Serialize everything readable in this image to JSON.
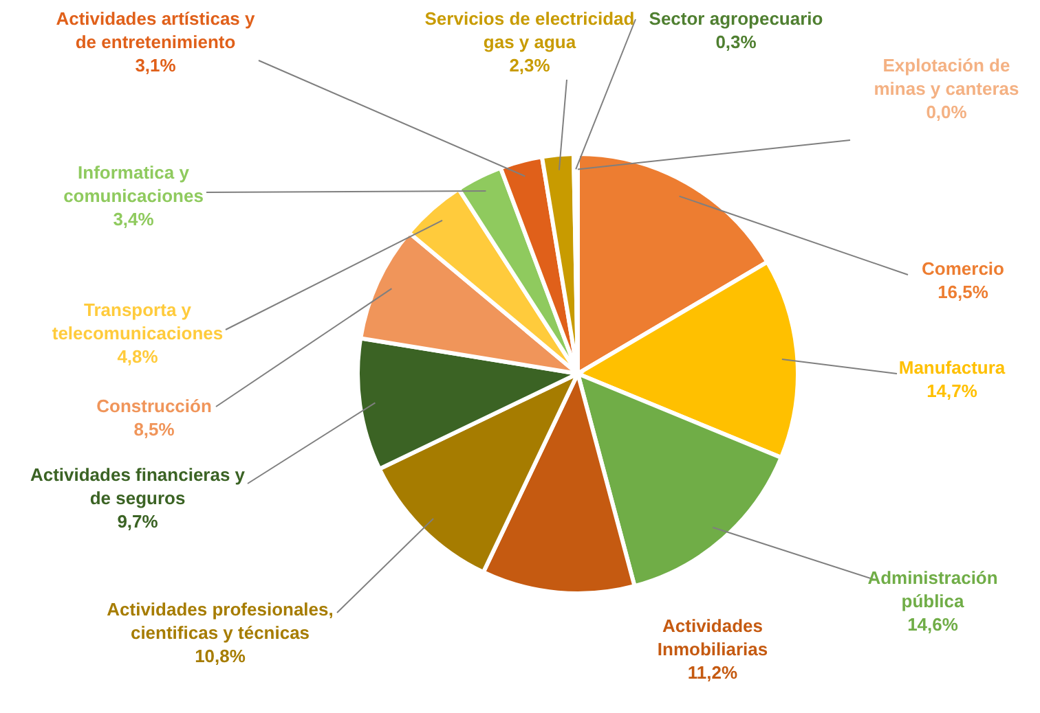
{
  "chart_data": {
    "type": "pie",
    "categories": [
      "Explotación de minas y canteras",
      "Comercio",
      "Manufactura",
      "Administración pública",
      "Actividades Inmobiliarias",
      "Actividades profesionales, cientificas y técnicas",
      "Actividades financieras y de seguros",
      "Construcción",
      "Transporta y telecomunicaciones",
      "Informatica y comunicaciones",
      "Actividades artísticas y de entretenimiento",
      "Servicios de electricidad gas y agua",
      "Sector agropecuario"
    ],
    "values": [
      0.0,
      16.5,
      14.7,
      14.6,
      11.2,
      10.8,
      9.7,
      8.5,
      4.8,
      3.4,
      3.1,
      2.3,
      0.3
    ],
    "value_labels": [
      "0,0%",
      "16,5%",
      "14,7%",
      "14,6%",
      "11,2%",
      "10,8%",
      "9,7%",
      "8,5%",
      "4,8%",
      "3,4%",
      "3,1%",
      "2,3%",
      "0,3%"
    ],
    "colors": [
      "#f4b183",
      "#ed7d31",
      "#ffc000",
      "#70ad47",
      "#c55a11",
      "#a67c00",
      "#3b6324",
      "#f0955a",
      "#ffcb3c",
      "#8fca5e",
      "#e0601a",
      "#c89b00",
      "#4f7f30"
    ]
  }
}
